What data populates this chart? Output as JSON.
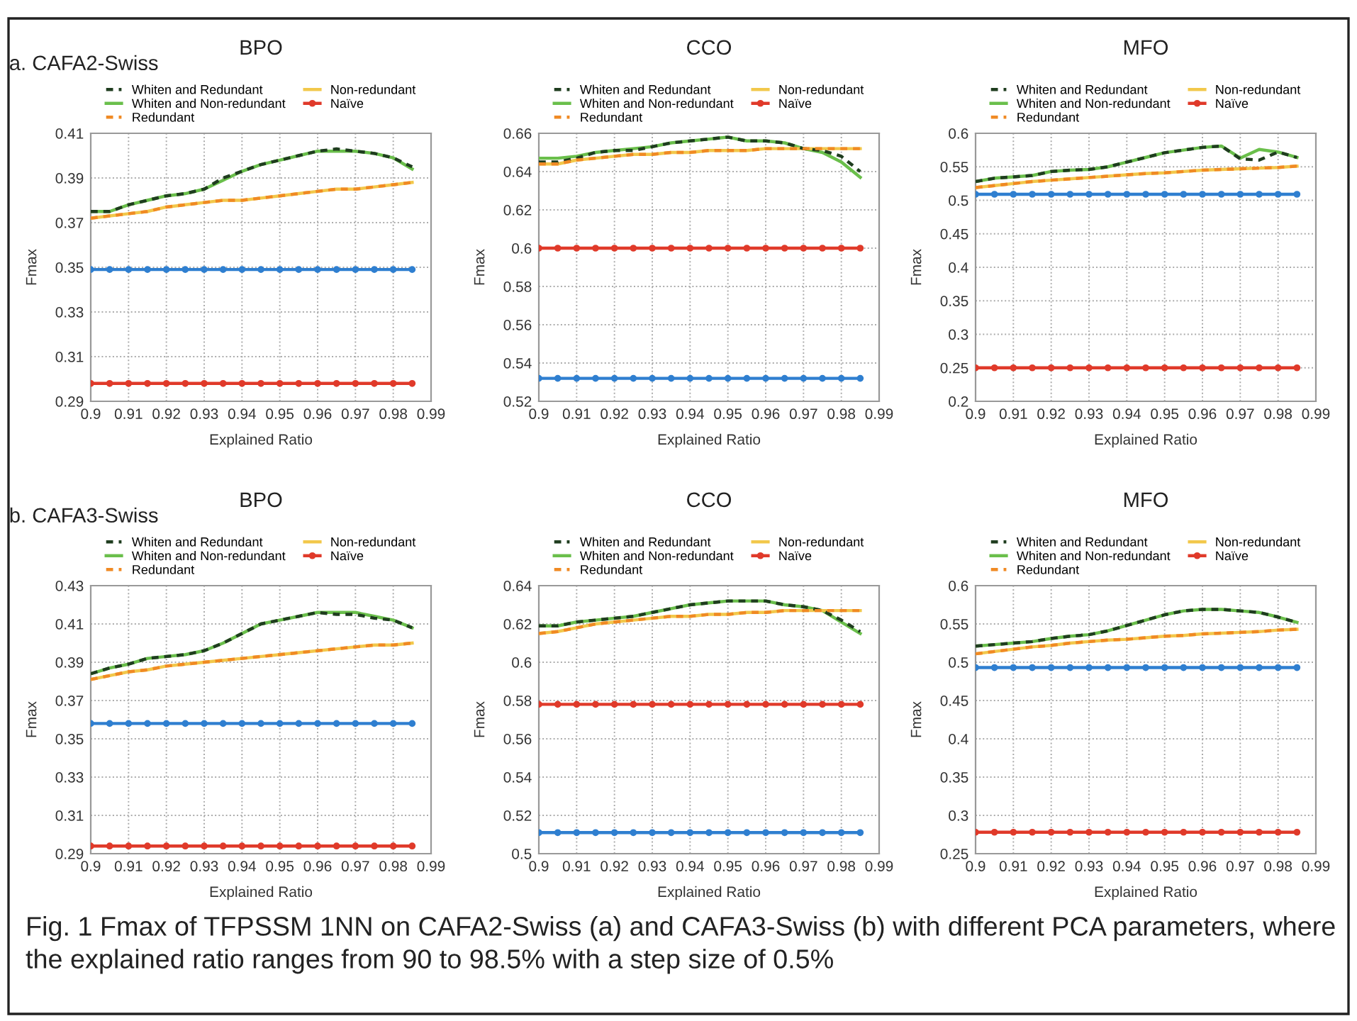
{
  "chart_data": [
    {
      "type": "line",
      "title": "BPO",
      "xlabel": "Explained Ratio",
      "ylabel": "Fmax",
      "annotations": [
        "a. CAFA2-Swiss",
        "Fig. 1 Fmax of TFPSSM 1NN on CAFA2-Swiss (a) and CAFA3-Swiss (b) with different PCA parameters, where the explained ratio ranges from 90 to 98.5% with a step size of 0.5%"
      ],
      "x": [
        0.9,
        0.905,
        0.91,
        0.915,
        0.92,
        0.925,
        0.93,
        0.935,
        0.94,
        0.945,
        0.95,
        0.955,
        0.96,
        0.965,
        0.97,
        0.975,
        0.98,
        0.985
      ],
      "xlim": [
        0.9,
        0.99
      ],
      "xticks": [
        0.9,
        0.91,
        0.92,
        0.93,
        0.94,
        0.95,
        0.96,
        0.97,
        0.98,
        0.99
      ],
      "ylim": [
        0.29,
        0.41
      ],
      "yticks": [
        0.29,
        0.31,
        0.33,
        0.35,
        0.37,
        0.39,
        0.41
      ],
      "grid": true,
      "legend": "top",
      "series": [
        {
          "name": "Whiten and Redundant",
          "color": "#1f3d1f",
          "line_style": "dashed",
          "marker": "none",
          "values": [
            0.375,
            0.375,
            0.378,
            0.38,
            0.382,
            0.383,
            0.385,
            0.39,
            0.393,
            0.396,
            0.398,
            0.4,
            0.402,
            0.403,
            0.402,
            0.401,
            0.399,
            0.395
          ]
        },
        {
          "name": "Whiten and Non-redundant",
          "color": "#6abf4b",
          "line_style": "solid",
          "marker": "none",
          "values": [
            0.375,
            0.375,
            0.378,
            0.38,
            0.382,
            0.383,
            0.385,
            0.389,
            0.393,
            0.396,
            0.398,
            0.4,
            0.402,
            0.402,
            0.402,
            0.401,
            0.399,
            0.394
          ]
        },
        {
          "name": "Redundant",
          "color": "#f08a24",
          "line_style": "dashed",
          "marker": "none",
          "values": [
            0.372,
            0.373,
            0.374,
            0.375,
            0.377,
            0.378,
            0.379,
            0.38,
            0.38,
            0.381,
            0.382,
            0.383,
            0.384,
            0.385,
            0.385,
            0.386,
            0.387,
            0.388
          ]
        },
        {
          "name": "Non-redundant",
          "color": "#f2c84b",
          "line_style": "solid",
          "marker": "none",
          "values": [
            0.372,
            0.373,
            0.374,
            0.375,
            0.377,
            0.378,
            0.379,
            0.38,
            0.38,
            0.381,
            0.382,
            0.383,
            0.384,
            0.385,
            0.385,
            0.386,
            0.387,
            0.388
          ]
        },
        {
          "color": "#2f7fd0",
          "line_style": "solid",
          "marker": "circle",
          "values": [
            0.349,
            0.349,
            0.349,
            0.349,
            0.349,
            0.349,
            0.349,
            0.349,
            0.349,
            0.349,
            0.349,
            0.349,
            0.349,
            0.349,
            0.349,
            0.349,
            0.349,
            0.349
          ]
        },
        {
          "name": "Naïve",
          "color": "#e03a2a",
          "line_style": "solid",
          "marker": "circle",
          "values": [
            0.298,
            0.298,
            0.298,
            0.298,
            0.298,
            0.298,
            0.298,
            0.298,
            0.298,
            0.298,
            0.298,
            0.298,
            0.298,
            0.298,
            0.298,
            0.298,
            0.298,
            0.298
          ]
        }
      ]
    },
    {
      "type": "line",
      "title": "CCO",
      "xlabel": "Explained Ratio",
      "ylabel": "Fmax",
      "x": [
        0.9,
        0.905,
        0.91,
        0.915,
        0.92,
        0.925,
        0.93,
        0.935,
        0.94,
        0.945,
        0.95,
        0.955,
        0.96,
        0.965,
        0.97,
        0.975,
        0.98,
        0.985
      ],
      "xlim": [
        0.9,
        0.99
      ],
      "xticks": [
        0.9,
        0.91,
        0.92,
        0.93,
        0.94,
        0.95,
        0.96,
        0.97,
        0.98,
        0.99
      ],
      "ylim": [
        0.52,
        0.66
      ],
      "yticks": [
        0.52,
        0.54,
        0.56,
        0.58,
        0.6,
        0.62,
        0.64,
        0.66
      ],
      "grid": true,
      "legend": "top",
      "series": [
        {
          "name": "Whiten and Redundant",
          "color": "#1f3d1f",
          "line_style": "dashed",
          "marker": "none",
          "values": [
            0.645,
            0.645,
            0.647,
            0.65,
            0.651,
            0.651,
            0.653,
            0.655,
            0.656,
            0.657,
            0.658,
            0.656,
            0.656,
            0.655,
            0.652,
            0.651,
            0.648,
            0.64
          ]
        },
        {
          "name": "Whiten and Non-redundant",
          "color": "#6abf4b",
          "line_style": "solid",
          "marker": "none",
          "values": [
            0.647,
            0.647,
            0.648,
            0.65,
            0.651,
            0.652,
            0.653,
            0.655,
            0.656,
            0.657,
            0.658,
            0.656,
            0.656,
            0.655,
            0.652,
            0.65,
            0.645,
            0.637
          ]
        },
        {
          "name": "Redundant",
          "color": "#f08a24",
          "line_style": "dashed",
          "marker": "none",
          "values": [
            0.644,
            0.644,
            0.646,
            0.647,
            0.648,
            0.649,
            0.649,
            0.65,
            0.65,
            0.651,
            0.651,
            0.651,
            0.652,
            0.652,
            0.652,
            0.652,
            0.652,
            0.652
          ]
        },
        {
          "name": "Non-redundant",
          "color": "#f2c84b",
          "line_style": "solid",
          "marker": "none",
          "values": [
            0.644,
            0.644,
            0.646,
            0.647,
            0.648,
            0.649,
            0.649,
            0.65,
            0.65,
            0.651,
            0.651,
            0.651,
            0.652,
            0.652,
            0.652,
            0.652,
            0.652,
            0.652
          ]
        },
        {
          "color": "#2f7fd0",
          "line_style": "solid",
          "marker": "circle",
          "values": [
            0.532,
            0.532,
            0.532,
            0.532,
            0.532,
            0.532,
            0.532,
            0.532,
            0.532,
            0.532,
            0.532,
            0.532,
            0.532,
            0.532,
            0.532,
            0.532,
            0.532,
            0.532
          ]
        },
        {
          "name": "Naïve",
          "color": "#e03a2a",
          "line_style": "solid",
          "marker": "circle",
          "values": [
            0.6,
            0.6,
            0.6,
            0.6,
            0.6,
            0.6,
            0.6,
            0.6,
            0.6,
            0.6,
            0.6,
            0.6,
            0.6,
            0.6,
            0.6,
            0.6,
            0.6,
            0.6
          ]
        }
      ]
    },
    {
      "type": "line",
      "title": "MFO",
      "xlabel": "Explained Ratio",
      "ylabel": "Fmax",
      "x": [
        0.9,
        0.905,
        0.91,
        0.915,
        0.92,
        0.925,
        0.93,
        0.935,
        0.94,
        0.945,
        0.95,
        0.955,
        0.96,
        0.965,
        0.97,
        0.975,
        0.98,
        0.985
      ],
      "xlim": [
        0.9,
        0.99
      ],
      "xticks": [
        0.9,
        0.91,
        0.92,
        0.93,
        0.94,
        0.95,
        0.96,
        0.97,
        0.98,
        0.99
      ],
      "ylim": [
        0.2,
        0.6
      ],
      "yticks": [
        0.2,
        0.25,
        0.3,
        0.35,
        0.4,
        0.45,
        0.5,
        0.55,
        0.6
      ],
      "grid": true,
      "legend": "top",
      "series": [
        {
          "name": "Whiten and Redundant",
          "color": "#1f3d1f",
          "line_style": "dashed",
          "marker": "none",
          "values": [
            0.528,
            0.533,
            0.535,
            0.537,
            0.543,
            0.545,
            0.546,
            0.55,
            0.557,
            0.564,
            0.571,
            0.575,
            0.579,
            0.581,
            0.562,
            0.56,
            0.572,
            0.564
          ]
        },
        {
          "name": "Whiten and Non-redundant",
          "color": "#6abf4b",
          "line_style": "solid",
          "marker": "none",
          "values": [
            0.528,
            0.533,
            0.535,
            0.537,
            0.543,
            0.545,
            0.546,
            0.55,
            0.557,
            0.564,
            0.571,
            0.575,
            0.579,
            0.581,
            0.563,
            0.576,
            0.572,
            0.564
          ]
        },
        {
          "name": "Redundant",
          "color": "#f08a24",
          "line_style": "dashed",
          "marker": "none",
          "values": [
            0.519,
            0.522,
            0.525,
            0.528,
            0.53,
            0.532,
            0.534,
            0.536,
            0.538,
            0.54,
            0.541,
            0.543,
            0.545,
            0.546,
            0.547,
            0.548,
            0.549,
            0.551
          ]
        },
        {
          "name": "Non-redundant",
          "color": "#f2c84b",
          "line_style": "solid",
          "marker": "none",
          "values": [
            0.519,
            0.522,
            0.525,
            0.528,
            0.53,
            0.532,
            0.534,
            0.536,
            0.538,
            0.54,
            0.541,
            0.543,
            0.545,
            0.546,
            0.547,
            0.548,
            0.549,
            0.551
          ]
        },
        {
          "color": "#2f7fd0",
          "line_style": "solid",
          "marker": "circle",
          "values": [
            0.509,
            0.509,
            0.509,
            0.509,
            0.509,
            0.509,
            0.509,
            0.509,
            0.509,
            0.509,
            0.509,
            0.509,
            0.509,
            0.509,
            0.509,
            0.509,
            0.509,
            0.509
          ]
        },
        {
          "name": "Naïve",
          "color": "#e03a2a",
          "line_style": "solid",
          "marker": "circle",
          "values": [
            0.25,
            0.25,
            0.25,
            0.25,
            0.25,
            0.25,
            0.25,
            0.25,
            0.25,
            0.25,
            0.25,
            0.25,
            0.25,
            0.25,
            0.25,
            0.25,
            0.25,
            0.25
          ]
        }
      ]
    },
    {
      "type": "line",
      "title": "BPO",
      "xlabel": "Explained Ratio",
      "ylabel": "Fmax",
      "annotations": [
        "b. CAFA3-Swiss"
      ],
      "x": [
        0.9,
        0.905,
        0.91,
        0.915,
        0.92,
        0.925,
        0.93,
        0.935,
        0.94,
        0.945,
        0.95,
        0.955,
        0.96,
        0.965,
        0.97,
        0.975,
        0.98,
        0.985
      ],
      "xlim": [
        0.9,
        0.99
      ],
      "xticks": [
        0.9,
        0.91,
        0.92,
        0.93,
        0.94,
        0.95,
        0.96,
        0.97,
        0.98,
        0.99
      ],
      "ylim": [
        0.29,
        0.43
      ],
      "yticks": [
        0.29,
        0.31,
        0.33,
        0.35,
        0.37,
        0.39,
        0.41,
        0.43
      ],
      "grid": true,
      "legend": "top",
      "series": [
        {
          "name": "Whiten and Redundant",
          "color": "#1f3d1f",
          "line_style": "dashed",
          "marker": "none",
          "values": [
            0.384,
            0.387,
            0.389,
            0.392,
            0.393,
            0.394,
            0.396,
            0.4,
            0.405,
            0.41,
            0.412,
            0.414,
            0.416,
            0.415,
            0.415,
            0.413,
            0.412,
            0.408
          ]
        },
        {
          "name": "Whiten and Non-redundant",
          "color": "#6abf4b",
          "line_style": "solid",
          "marker": "none",
          "values": [
            0.384,
            0.387,
            0.389,
            0.392,
            0.393,
            0.394,
            0.396,
            0.4,
            0.405,
            0.41,
            0.412,
            0.414,
            0.416,
            0.416,
            0.416,
            0.414,
            0.412,
            0.408
          ]
        },
        {
          "name": "Redundant",
          "color": "#f08a24",
          "line_style": "dashed",
          "marker": "none",
          "values": [
            0.381,
            0.383,
            0.385,
            0.386,
            0.388,
            0.389,
            0.39,
            0.391,
            0.392,
            0.393,
            0.394,
            0.395,
            0.396,
            0.397,
            0.398,
            0.399,
            0.399,
            0.4
          ]
        },
        {
          "name": "Non-redundant",
          "color": "#f2c84b",
          "line_style": "solid",
          "marker": "none",
          "values": [
            0.381,
            0.383,
            0.385,
            0.386,
            0.388,
            0.389,
            0.39,
            0.391,
            0.392,
            0.393,
            0.394,
            0.395,
            0.396,
            0.397,
            0.398,
            0.399,
            0.399,
            0.4
          ]
        },
        {
          "color": "#2f7fd0",
          "line_style": "solid",
          "marker": "circle",
          "values": [
            0.358,
            0.358,
            0.358,
            0.358,
            0.358,
            0.358,
            0.358,
            0.358,
            0.358,
            0.358,
            0.358,
            0.358,
            0.358,
            0.358,
            0.358,
            0.358,
            0.358,
            0.358
          ]
        },
        {
          "name": "Naïve",
          "color": "#e03a2a",
          "line_style": "solid",
          "marker": "circle",
          "values": [
            0.294,
            0.294,
            0.294,
            0.294,
            0.294,
            0.294,
            0.294,
            0.294,
            0.294,
            0.294,
            0.294,
            0.294,
            0.294,
            0.294,
            0.294,
            0.294,
            0.294,
            0.294
          ]
        }
      ]
    },
    {
      "type": "line",
      "title": "CCO",
      "xlabel": "Explained Ratio",
      "ylabel": "Fmax",
      "x": [
        0.9,
        0.905,
        0.91,
        0.915,
        0.92,
        0.925,
        0.93,
        0.935,
        0.94,
        0.945,
        0.95,
        0.955,
        0.96,
        0.965,
        0.97,
        0.975,
        0.98,
        0.985
      ],
      "xlim": [
        0.9,
        0.99
      ],
      "xticks": [
        0.9,
        0.91,
        0.92,
        0.93,
        0.94,
        0.95,
        0.96,
        0.97,
        0.98,
        0.99
      ],
      "ylim": [
        0.5,
        0.64
      ],
      "yticks": [
        0.5,
        0.52,
        0.54,
        0.56,
        0.58,
        0.6,
        0.62,
        0.64
      ],
      "grid": true,
      "legend": "top",
      "series": [
        {
          "name": "Whiten and Redundant",
          "color": "#1f3d1f",
          "line_style": "dashed",
          "marker": "none",
          "values": [
            0.619,
            0.619,
            0.621,
            0.622,
            0.623,
            0.624,
            0.626,
            0.628,
            0.63,
            0.631,
            0.632,
            0.632,
            0.632,
            0.63,
            0.629,
            0.627,
            0.622,
            0.616
          ]
        },
        {
          "name": "Whiten and Non-redundant",
          "color": "#6abf4b",
          "line_style": "solid",
          "marker": "none",
          "values": [
            0.619,
            0.619,
            0.621,
            0.622,
            0.623,
            0.624,
            0.626,
            0.628,
            0.63,
            0.631,
            0.632,
            0.632,
            0.632,
            0.63,
            0.629,
            0.627,
            0.621,
            0.615
          ]
        },
        {
          "name": "Redundant",
          "color": "#f08a24",
          "line_style": "dashed",
          "marker": "none",
          "values": [
            0.615,
            0.616,
            0.618,
            0.62,
            0.621,
            0.622,
            0.623,
            0.624,
            0.624,
            0.625,
            0.625,
            0.626,
            0.626,
            0.627,
            0.627,
            0.627,
            0.627,
            0.627
          ]
        },
        {
          "name": "Non-redundant",
          "color": "#f2c84b",
          "line_style": "solid",
          "marker": "none",
          "values": [
            0.615,
            0.616,
            0.618,
            0.62,
            0.621,
            0.622,
            0.623,
            0.624,
            0.624,
            0.625,
            0.625,
            0.626,
            0.626,
            0.627,
            0.627,
            0.627,
            0.627,
            0.627
          ]
        },
        {
          "color": "#2f7fd0",
          "line_style": "solid",
          "marker": "circle",
          "values": [
            0.511,
            0.511,
            0.511,
            0.511,
            0.511,
            0.511,
            0.511,
            0.511,
            0.511,
            0.511,
            0.511,
            0.511,
            0.511,
            0.511,
            0.511,
            0.511,
            0.511,
            0.511
          ]
        },
        {
          "name": "Naïve",
          "color": "#e03a2a",
          "line_style": "solid",
          "marker": "circle",
          "values": [
            0.578,
            0.578,
            0.578,
            0.578,
            0.578,
            0.578,
            0.578,
            0.578,
            0.578,
            0.578,
            0.578,
            0.578,
            0.578,
            0.578,
            0.578,
            0.578,
            0.578,
            0.578
          ]
        }
      ]
    },
    {
      "type": "line",
      "title": "MFO",
      "xlabel": "Explained Ratio",
      "ylabel": "Fmax",
      "x": [
        0.9,
        0.905,
        0.91,
        0.915,
        0.92,
        0.925,
        0.93,
        0.935,
        0.94,
        0.945,
        0.95,
        0.955,
        0.96,
        0.965,
        0.97,
        0.975,
        0.98,
        0.985
      ],
      "xlim": [
        0.9,
        0.99
      ],
      "xticks": [
        0.9,
        0.91,
        0.92,
        0.93,
        0.94,
        0.95,
        0.96,
        0.97,
        0.98,
        0.99
      ],
      "ylim": [
        0.25,
        0.6
      ],
      "yticks": [
        0.25,
        0.3,
        0.35,
        0.4,
        0.45,
        0.5,
        0.55,
        0.6
      ],
      "grid": true,
      "legend": "top",
      "series": [
        {
          "name": "Whiten and Redundant",
          "color": "#1f3d1f",
          "line_style": "dashed",
          "marker": "none",
          "values": [
            0.521,
            0.523,
            0.525,
            0.527,
            0.531,
            0.534,
            0.536,
            0.541,
            0.548,
            0.555,
            0.562,
            0.567,
            0.569,
            0.569,
            0.567,
            0.565,
            0.559,
            0.552
          ]
        },
        {
          "name": "Whiten and Non-redundant",
          "color": "#6abf4b",
          "line_style": "solid",
          "marker": "none",
          "values": [
            0.521,
            0.523,
            0.525,
            0.527,
            0.531,
            0.534,
            0.536,
            0.541,
            0.548,
            0.555,
            0.562,
            0.567,
            0.569,
            0.569,
            0.567,
            0.565,
            0.559,
            0.552
          ]
        },
        {
          "name": "Redundant",
          "color": "#f08a24",
          "line_style": "dashed",
          "marker": "none",
          "values": [
            0.511,
            0.514,
            0.517,
            0.52,
            0.522,
            0.525,
            0.527,
            0.529,
            0.53,
            0.532,
            0.534,
            0.535,
            0.537,
            0.538,
            0.539,
            0.54,
            0.542,
            0.543
          ]
        },
        {
          "name": "Non-redundant",
          "color": "#f2c84b",
          "line_style": "solid",
          "marker": "none",
          "values": [
            0.511,
            0.514,
            0.517,
            0.52,
            0.522,
            0.525,
            0.527,
            0.529,
            0.53,
            0.532,
            0.534,
            0.535,
            0.537,
            0.538,
            0.539,
            0.54,
            0.542,
            0.543
          ]
        },
        {
          "color": "#2f7fd0",
          "line_style": "solid",
          "marker": "circle",
          "values": [
            0.493,
            0.493,
            0.493,
            0.493,
            0.493,
            0.493,
            0.493,
            0.493,
            0.493,
            0.493,
            0.493,
            0.493,
            0.493,
            0.493,
            0.493,
            0.493,
            0.493,
            0.493
          ]
        },
        {
          "name": "Naïve",
          "color": "#e03a2a",
          "line_style": "solid",
          "marker": "circle",
          "values": [
            0.278,
            0.278,
            0.278,
            0.278,
            0.278,
            0.278,
            0.278,
            0.278,
            0.278,
            0.278,
            0.278,
            0.278,
            0.278,
            0.278,
            0.278,
            0.278,
            0.278,
            0.278
          ]
        }
      ]
    }
  ]
}
